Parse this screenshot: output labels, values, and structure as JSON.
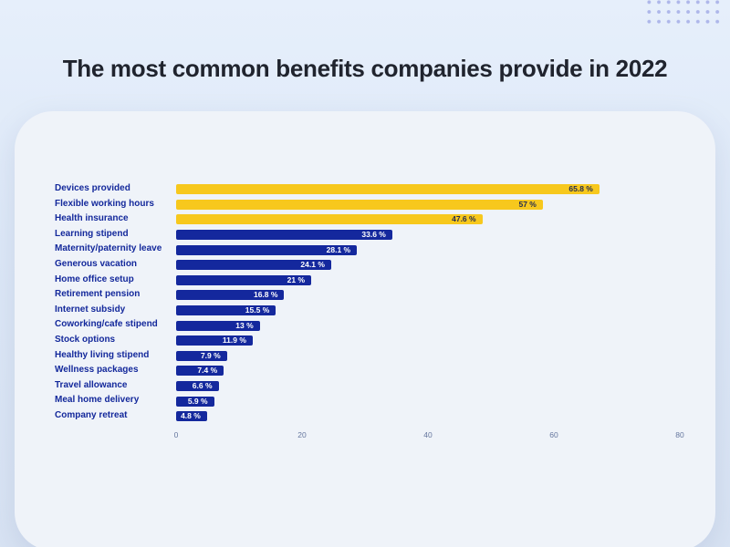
{
  "title": "The most common benefits companies provide in 2022",
  "colors": {
    "background_top": "#e6effb",
    "background_bottom": "#d8e3f3",
    "card": "#eff3f9",
    "title_text": "#20242e",
    "highlight_bar": "#f7c81d",
    "default_bar": "#14289d",
    "category_label_text": "#13289b",
    "value_on_highlight": "#232c52",
    "value_on_default": "#ffffff",
    "tick_text": "#66779f",
    "dots": "#aeb7ea"
  },
  "decorations": {
    "dots_pattern": "dot-grid-top-right"
  },
  "chart_data": {
    "type": "bar",
    "orientation": "horizontal",
    "title": "The most common benefits companies provide in 2022",
    "categories": [
      "Devices provided",
      "Flexible working hours",
      "Health insurance",
      "Learning stipend",
      "Maternity/paternity leave",
      "Generous vacation",
      "Home office setup",
      "Retirement pension",
      "Internet subsidy",
      "Coworking/cafe stipend",
      "Stock options",
      "Healthy living stipend",
      "Wellness packages",
      "Travel allowance",
      "Meal home delivery",
      "Company retreat"
    ],
    "values": [
      65.8,
      57,
      47.6,
      33.6,
      28.1,
      24.1,
      21,
      16.8,
      15.5,
      13,
      11.9,
      7.9,
      7.4,
      6.6,
      5.9,
      4.8
    ],
    "value_labels": [
      "65.8 %",
      "57 %",
      "47.6 %",
      "33.6 %",
      "28.1 %",
      "24.1 %",
      "21 %",
      "16.8 %",
      "15.5 %",
      "13 %",
      "11.9 %",
      "7.9 %",
      "7.4 %",
      "6.6 %",
      "5.9 %",
      "4.8 %"
    ],
    "highlighted": [
      true,
      true,
      true,
      false,
      false,
      false,
      false,
      false,
      false,
      false,
      false,
      false,
      false,
      false,
      false,
      false
    ],
    "x_ticks": [
      0,
      20,
      40,
      60,
      80
    ],
    "xlim": [
      0,
      80
    ],
    "unit": "%",
    "grid": false,
    "legend": null,
    "value_labels_position": "inside-end"
  }
}
